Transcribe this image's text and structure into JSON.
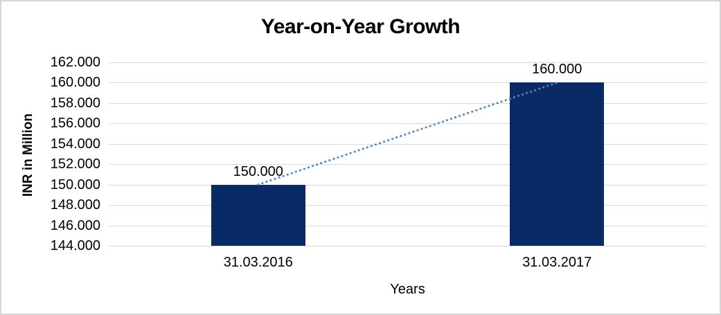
{
  "window": {
    "background": "#ffffff",
    "border_color": "#d6d6d6"
  },
  "chart_data": {
    "type": "bar",
    "title": "Year-on-Year Growth",
    "xlabel": "Years",
    "ylabel": "INR in Million",
    "categories": [
      "31.03.2016",
      "31.03.2017"
    ],
    "values": [
      150000,
      160000
    ],
    "value_labels": [
      "150.000",
      "160.000"
    ],
    "ylim": [
      144000,
      162000
    ],
    "ytick_step": 2000,
    "yticks": [
      {
        "value": 162000,
        "label": "162.000"
      },
      {
        "value": 160000,
        "label": "160.000"
      },
      {
        "value": 158000,
        "label": "158.000"
      },
      {
        "value": 156000,
        "label": "156.000"
      },
      {
        "value": 154000,
        "label": "154.000"
      },
      {
        "value": 152000,
        "label": "152.000"
      },
      {
        "value": 150000,
        "label": "150.000"
      },
      {
        "value": 148000,
        "label": "148.000"
      },
      {
        "value": 146000,
        "label": "146.000"
      },
      {
        "value": 144000,
        "label": "144.000"
      }
    ],
    "grid": true,
    "legend": "none",
    "bar_color": "#0a2a66",
    "gridline_color": "#d9d9d9",
    "trendline": {
      "style": "dotted",
      "color": "#4f86c6",
      "from_value": 150000,
      "to_value": 160000
    }
  }
}
